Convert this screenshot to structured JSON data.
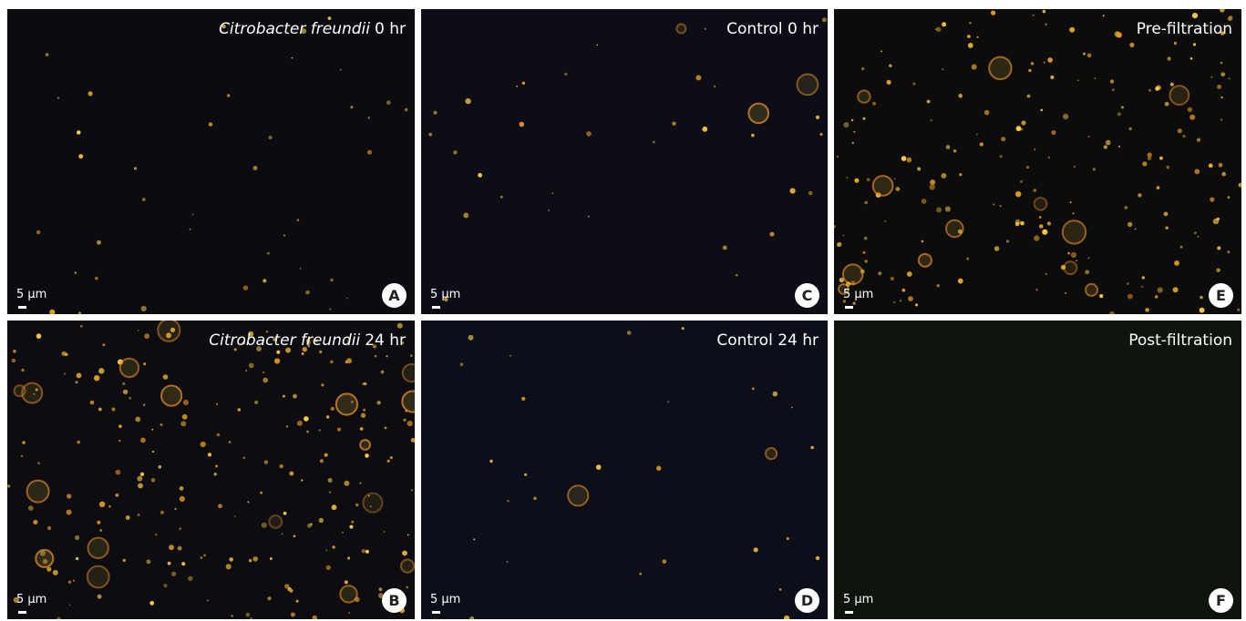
{
  "panels": [
    {
      "letter": "A",
      "title_italic": "Citrobacter freundii",
      "title": "0 hr",
      "scale": "5 μm"
    },
    {
      "letter": "C",
      "title": "Control 0 hr",
      "scale": "5 μm"
    },
    {
      "letter": "E",
      "title": "Pre-filtration",
      "scale": "5 μm"
    },
    {
      "letter": "B",
      "title_italic": "Citrobacter freundii",
      "title": "24 hr",
      "scale": "5 μm"
    },
    {
      "letter": "D",
      "title": "Control 24 hr",
      "scale": "5 μm"
    },
    {
      "letter": "F",
      "title": "Post-filtration",
      "scale": "5 μm"
    }
  ]
}
